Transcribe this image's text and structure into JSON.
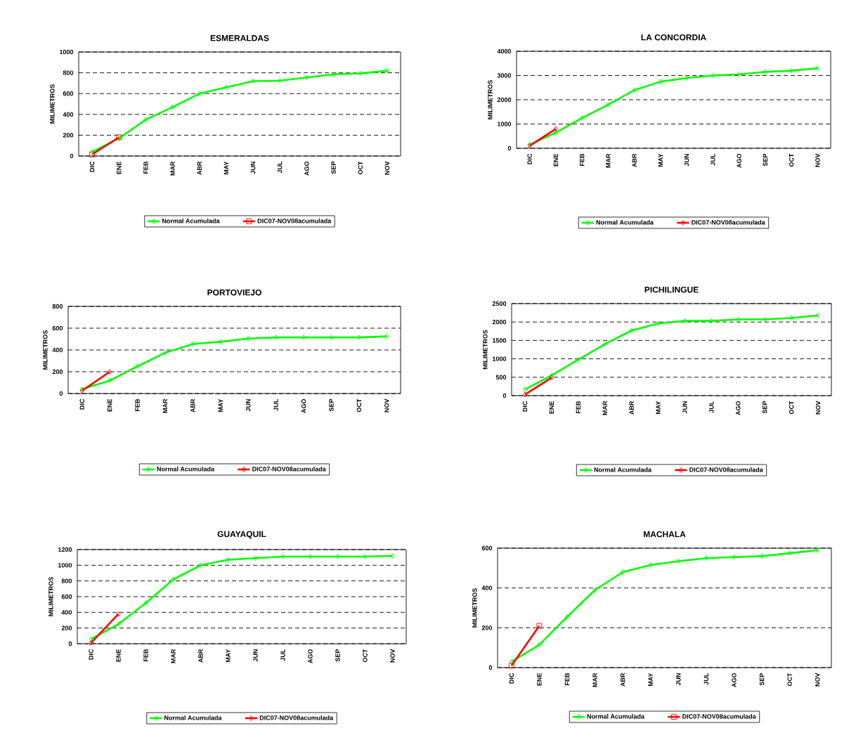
{
  "chart_data": [
    {
      "type": "line",
      "title": "ESMERALDAS",
      "ylabel": "MILIMETROS",
      "categories": [
        "DIC",
        "ENE",
        "FEB",
        "MAR",
        "ABR",
        "MAY",
        "JUN",
        "JUL",
        "AGO",
        "SEP",
        "OCT",
        "NOV"
      ],
      "ylim": [
        0,
        1000
      ],
      "yticks": [
        0,
        200,
        400,
        600,
        800,
        1000
      ],
      "grid": "y",
      "legend": "bottom",
      "line_style": "solid",
      "series": [
        {
          "name": "Normal Acumulada",
          "color": "#00ff00",
          "marker": "diamond",
          "values": [
            40,
            170,
            350,
            470,
            600,
            660,
            720,
            725,
            755,
            785,
            795,
            820
          ]
        },
        {
          "name": "DIC07-NOV08acumulada",
          "color": "#ff0000",
          "marker": "square",
          "values": [
            15,
            180,
            null,
            null,
            null,
            null,
            null,
            null,
            null,
            null,
            null,
            null
          ]
        }
      ]
    },
    {
      "type": "line",
      "title": "LA  CONCORDIA",
      "ylabel": "MILIMETROS",
      "categories": [
        "DIC",
        "ENE",
        "FEB",
        "MAR",
        "ABR",
        "MAY",
        "JUN",
        "JUL",
        "AGO",
        "SEP",
        "OCT",
        "NOV"
      ],
      "ylim": [
        0,
        4000
      ],
      "yticks": [
        0,
        1000,
        2000,
        3000,
        4000
      ],
      "grid": "y",
      "legend": "bottom",
      "line_style": "solid",
      "series": [
        {
          "name": "Normal Acumulada",
          "color": "#00ff00",
          "marker": "diamond",
          "values": [
            150,
            650,
            1250,
            1800,
            2400,
            2750,
            2900,
            3000,
            3050,
            3150,
            3200,
            3300
          ]
        },
        {
          "name": "DIC07-NOV08acumulada",
          "color": "#ff0000",
          "marker": "diamond",
          "values": [
            100,
            800,
            null,
            null,
            null,
            null,
            null,
            null,
            null,
            null,
            null,
            null
          ]
        }
      ]
    },
    {
      "type": "line",
      "title": "PORTOVIEJO",
      "ylabel": "MILIMETROS",
      "categories": [
        "DIC",
        "ENE",
        "FEB",
        "MAR",
        "ABR",
        "MAY",
        "JUN",
        "JUL",
        "AGO",
        "SEP",
        "OCT",
        "NOV"
      ],
      "ylim": [
        0,
        800
      ],
      "yticks": [
        0,
        200,
        400,
        600,
        800
      ],
      "grid": "y",
      "legend": "bottom",
      "line_style": "solid",
      "series": [
        {
          "name": "Normal Acumulada",
          "color": "#00ff00",
          "marker": "diamond",
          "values": [
            40,
            120,
            250,
            375,
            455,
            475,
            505,
            515,
            515,
            515,
            515,
            525
          ]
        },
        {
          "name": "DIC07-NOV08acumulada",
          "color": "#ff0000",
          "marker": "diamond",
          "values": [
            25,
            200,
            null,
            null,
            null,
            null,
            null,
            null,
            null,
            null,
            null,
            null
          ]
        }
      ]
    },
    {
      "type": "line",
      "title": "PICHILINGUE",
      "ylabel": "MILIMETROS",
      "categories": [
        "DIC",
        "ENE",
        "FEB",
        "MAR",
        "ABR",
        "MAY",
        "JUN",
        "JUL",
        "AGO",
        "SEP",
        "OCT",
        "NOV"
      ],
      "ylim": [
        0,
        2500
      ],
      "yticks": [
        0,
        500,
        1000,
        1500,
        2000,
        2500
      ],
      "grid": "y",
      "legend": "bottom",
      "line_style": "solid",
      "series": [
        {
          "name": "Normal Acumulada",
          "color": "#00ff00",
          "marker": "diamond",
          "values": [
            170,
            550,
            980,
            1400,
            1770,
            1960,
            2030,
            2030,
            2070,
            2070,
            2110,
            2180
          ]
        },
        {
          "name": "DIC07-NOV08acumulada",
          "color": "#ff0000",
          "marker": "diamond",
          "values": [
            30,
            490,
            null,
            null,
            null,
            null,
            null,
            null,
            null,
            null,
            null,
            null
          ]
        }
      ]
    },
    {
      "type": "line",
      "title": "GUAYAQUIL",
      "ylabel": "MILIMETROS",
      "categories": [
        "DIC",
        "ENE",
        "FEB",
        "MAR",
        "ABR",
        "MAY",
        "JUN",
        "JUL",
        "AGO",
        "SEP",
        "OCT",
        "NOV"
      ],
      "ylim": [
        0,
        1200
      ],
      "yticks": [
        0,
        200,
        400,
        600,
        800,
        1000,
        1200
      ],
      "grid": "y",
      "legend": "bottom",
      "line_style": "solid",
      "series": [
        {
          "name": "Normal Acumulada",
          "color": "#00ff00",
          "marker": "diamond",
          "values": [
            60,
            250,
            520,
            820,
            1000,
            1070,
            1090,
            1110,
            1110,
            1110,
            1110,
            1120
          ]
        },
        {
          "name": "DIC07-NOV08acumulada",
          "color": "#ff0000",
          "marker": "diamond",
          "values": [
            10,
            380,
            null,
            null,
            null,
            null,
            null,
            null,
            null,
            null,
            null,
            null
          ]
        }
      ]
    },
    {
      "type": "line",
      "title": "MACHALA",
      "ylabel": "MILIMETROS",
      "categories": [
        "DIC",
        "ENE",
        "FEB",
        "MAR",
        "ABR",
        "MAY",
        "JUN",
        "JUL",
        "AGO",
        "SEP",
        "OCT",
        "NOV"
      ],
      "ylim": [
        0,
        600
      ],
      "yticks": [
        0,
        200,
        400,
        600
      ],
      "grid": "y",
      "legend": "bottom",
      "line_style": "solid",
      "series": [
        {
          "name": "Normal Acumulada",
          "color": "#00ff00",
          "marker": "diamond",
          "values": [
            30,
            115,
            255,
            390,
            480,
            515,
            535,
            550,
            555,
            560,
            575,
            590
          ]
        },
        {
          "name": "DIC07-NOV08acumulada",
          "color": "#ff0000",
          "marker": "square",
          "values": [
            10,
            210,
            null,
            null,
            null,
            null,
            null,
            null,
            null,
            null,
            null,
            null
          ]
        }
      ]
    }
  ]
}
